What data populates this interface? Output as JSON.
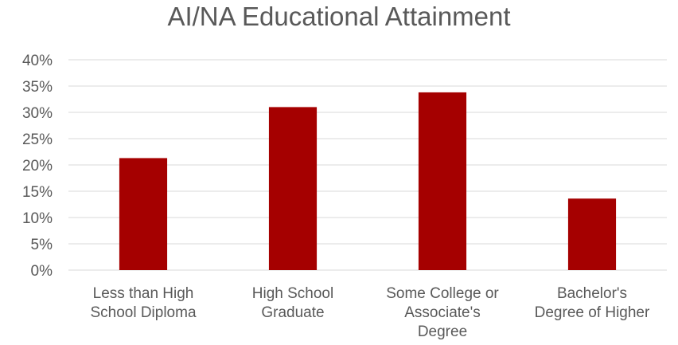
{
  "chart_data": {
    "type": "bar",
    "title": "AI/NA Educational Attainment",
    "categories": [
      [
        "Less than High",
        "School Diploma"
      ],
      [
        "High School",
        "Graduate"
      ],
      [
        "Some College or",
        "Associate's",
        "Degree"
      ],
      [
        "Bachelor's",
        "Degree of Higher"
      ]
    ],
    "values": [
      21.3,
      31.0,
      33.8,
      13.6
    ],
    "ylim": [
      0,
      40
    ],
    "yticks": [
      "0%",
      "5%",
      "10%",
      "15%",
      "20%",
      "25%",
      "30%",
      "35%",
      "40%"
    ],
    "ytick_values": [
      0,
      5,
      10,
      15,
      20,
      25,
      30,
      35,
      40
    ],
    "grid": true,
    "bar_color": "#A50000",
    "grid_color": "#D9D9D9",
    "text_color": "#595959"
  }
}
